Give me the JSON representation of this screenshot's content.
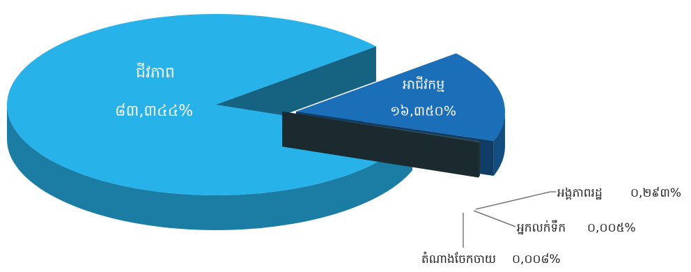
{
  "chart_data": {
    "type": "pie",
    "categories": [
      "ជីវភាព",
      "អាជីវកម្ម",
      "អង្គភាពរដ្ឋ",
      "អ្នកលក់ទឹក",
      "តំណាងចែកចាយ"
    ],
    "values": [
      83.344,
      16.35,
      0.293,
      0.005,
      0.008
    ],
    "value_labels": [
      "៨៣,៣៤៤%",
      "១៦,៣៥០%",
      "០,២៩៣%",
      "០,០០៥%",
      "០,០០៨%"
    ],
    "colors": [
      "#27b3ea",
      "#1b6fb9",
      "#2f4c56",
      "#2f4c56",
      "#2f4c56"
    ]
  }
}
